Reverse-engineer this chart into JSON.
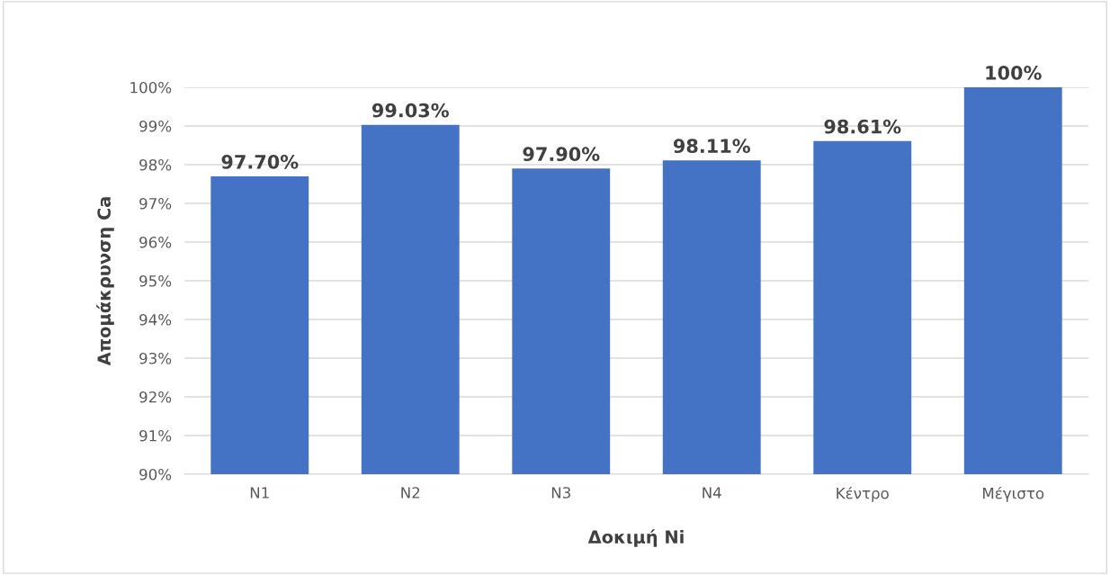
{
  "chart_data": {
    "type": "bar",
    "xlabel": "Δοκιμή Ni",
    "ylabel": "Απομάκρυνση Ca",
    "categories": [
      "N1",
      "N2",
      "N3",
      "N4",
      "Κέντρο",
      "Μέγιστο"
    ],
    "values": [
      97.7,
      99.03,
      97.9,
      98.11,
      98.61,
      100
    ],
    "value_labels": [
      "97.70%",
      "99.03%",
      "97.90%",
      "98.11%",
      "98.61%",
      "100%"
    ],
    "color": "#4472c4",
    "ylim": [
      90,
      100
    ],
    "yticks": [
      {
        "value": 90,
        "label": "90%"
      },
      {
        "value": 91,
        "label": "91%"
      },
      {
        "value": 92,
        "label": "92%"
      },
      {
        "value": 93,
        "label": "93%"
      },
      {
        "value": 94,
        "label": "94%"
      },
      {
        "value": 95,
        "label": "95%"
      },
      {
        "value": 96,
        "label": "96%"
      },
      {
        "value": 97,
        "label": "97%"
      },
      {
        "value": 98,
        "label": "98%"
      },
      {
        "value": 99,
        "label": "99%"
      },
      {
        "value": 100,
        "label": "100%"
      }
    ],
    "grid": "y"
  }
}
